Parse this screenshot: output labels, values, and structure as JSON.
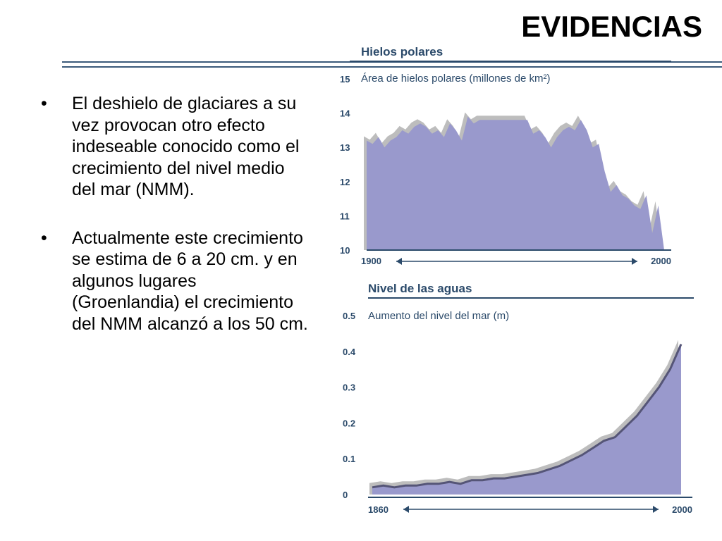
{
  "slide": {
    "title": "EVIDENCIAS",
    "bullets": [
      "El deshielo de glaciares a su vez provocan otro efecto indeseable conocido como el crecimiento del nivel medio del mar (NMM).",
      "Actualmente este crecimiento se estima de 6 a 20 cm. y en algunos lugares (Groenlandia) el crecimiento del NMM alcanzó a los 50 cm."
    ]
  },
  "colors": {
    "fill": "#9999cc",
    "shadow": "#bdbdbd",
    "text": "#2b4a6a",
    "rule": "#3b5a7a"
  },
  "chart_data": [
    {
      "type": "area",
      "title": "Hielos polares",
      "ylabel": "Área de hielos polares (millones de km²)",
      "xlabel": "",
      "x_tick_labels": [
        "1900",
        "2000"
      ],
      "y_ticks": [
        10,
        11,
        12,
        13,
        14,
        15
      ],
      "xlim": [
        1900,
        2000
      ],
      "ylim": [
        10,
        15
      ],
      "x": [
        1900,
        1902,
        1904,
        1906,
        1908,
        1910,
        1912,
        1914,
        1916,
        1918,
        1920,
        1922,
        1924,
        1926,
        1928,
        1930,
        1932,
        1934,
        1936,
        1938,
        1940,
        1942,
        1944,
        1946,
        1948,
        1950,
        1952,
        1954,
        1956,
        1958,
        1960,
        1962,
        1964,
        1966,
        1968,
        1970,
        1972,
        1974,
        1976,
        1978,
        1980,
        1982,
        1984,
        1986,
        1988,
        1990,
        1992,
        1994,
        1996,
        1998,
        2000
      ],
      "values": [
        13.2,
        13.1,
        13.3,
        13.0,
        13.2,
        13.3,
        13.5,
        13.4,
        13.6,
        13.7,
        13.6,
        13.4,
        13.5,
        13.3,
        13.7,
        13.5,
        13.2,
        13.9,
        13.7,
        13.8,
        13.8,
        13.8,
        13.8,
        13.8,
        13.8,
        13.8,
        13.8,
        13.8,
        13.4,
        13.5,
        13.3,
        13.0,
        13.3,
        13.5,
        13.6,
        13.5,
        13.8,
        13.5,
        13.0,
        13.1,
        12.3,
        11.7,
        11.9,
        11.6,
        11.5,
        11.3,
        11.2,
        11.6,
        10.5,
        11.3,
        10.0
      ],
      "grid": false,
      "legend": "none"
    },
    {
      "type": "area",
      "title": "Nivel de las aguas",
      "ylabel": "Aumento del nivel del mar (m)",
      "xlabel": "",
      "x_tick_labels": [
        "1860",
        "2000"
      ],
      "y_ticks": [
        0,
        0.1,
        0.2,
        0.3,
        0.4,
        0.5
      ],
      "y_tick_labels": [
        "0",
        "0.1",
        "0.2",
        "0.3",
        "0.4",
        "0.5"
      ],
      "xlim": [
        1860,
        2000
      ],
      "ylim": [
        0,
        0.5
      ],
      "x": [
        1860,
        1865,
        1870,
        1875,
        1880,
        1885,
        1890,
        1895,
        1900,
        1905,
        1910,
        1915,
        1920,
        1925,
        1930,
        1935,
        1940,
        1945,
        1950,
        1955,
        1960,
        1965,
        1970,
        1975,
        1980,
        1985,
        1990,
        1995,
        2000
      ],
      "values": [
        0.02,
        0.025,
        0.02,
        0.025,
        0.025,
        0.03,
        0.03,
        0.035,
        0.03,
        0.04,
        0.04,
        0.045,
        0.045,
        0.05,
        0.055,
        0.06,
        0.07,
        0.08,
        0.095,
        0.11,
        0.13,
        0.15,
        0.16,
        0.19,
        0.22,
        0.26,
        0.3,
        0.35,
        0.42
      ],
      "grid": false,
      "legend": "none"
    }
  ]
}
